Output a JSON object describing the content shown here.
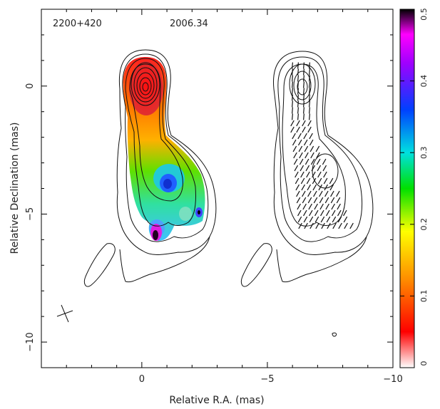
{
  "chart_data": {
    "type": "heatmap",
    "source_label": "2200+420",
    "epoch_label": "2006.34",
    "xlabel": "Relative R.A. (mas)",
    "ylabel": "Relative Declination (mas)",
    "xlim": [
      4,
      -10
    ],
    "ylim": [
      -11,
      3
    ],
    "x_ticks": [
      0,
      -5,
      -10
    ],
    "y_ticks": [
      0,
      -5,
      -10
    ],
    "colorbar": {
      "range": [
        0,
        0.5
      ],
      "ticks": [
        "0",
        "0.1",
        "0.2",
        "0.3",
        "0.4",
        "0.5"
      ],
      "colors": [
        "#ffffff",
        "#ff0000",
        "#ff9000",
        "#ffff00",
        "#00e000",
        "#00e0e0",
        "#0040ff",
        "#a000ff",
        "#ff00ff",
        "#000000"
      ]
    },
    "panels": [
      {
        "name": "fractional polarization with total intensity contours",
        "x_offset": 0,
        "jet_axis": [
          [
            0,
            0
          ],
          [
            0.3,
            -2.0
          ],
          [
            0.8,
            -4.0
          ],
          [
            0.6,
            -5.6
          ]
        ]
      },
      {
        "name": "EVPA sticks with total intensity contours",
        "x_offset": -6.0,
        "jet_axis": [
          [
            0,
            0
          ],
          [
            0.3,
            -2.0
          ],
          [
            0.8,
            -4.0
          ],
          [
            0.6,
            -5.6
          ]
        ]
      }
    ],
    "fractional_polarization_samples": [
      {
        "x": 0.0,
        "y": 0.0,
        "value": 0.05
      },
      {
        "x": 0.1,
        "y": -1.0,
        "value": 0.08
      },
      {
        "x": 0.3,
        "y": -2.5,
        "value": 0.15
      },
      {
        "x": 0.9,
        "y": -3.5,
        "value": 0.28
      },
      {
        "x": 0.9,
        "y": -3.8,
        "value": 0.35
      },
      {
        "x": 0.3,
        "y": -4.4,
        "value": 0.2
      },
      {
        "x": 0.5,
        "y": -5.8,
        "value": 0.42
      },
      {
        "x": 0.5,
        "y": -6.0,
        "value": 0.5
      },
      {
        "x": 2.1,
        "y": -4.9,
        "value": 0.37
      }
    ]
  }
}
